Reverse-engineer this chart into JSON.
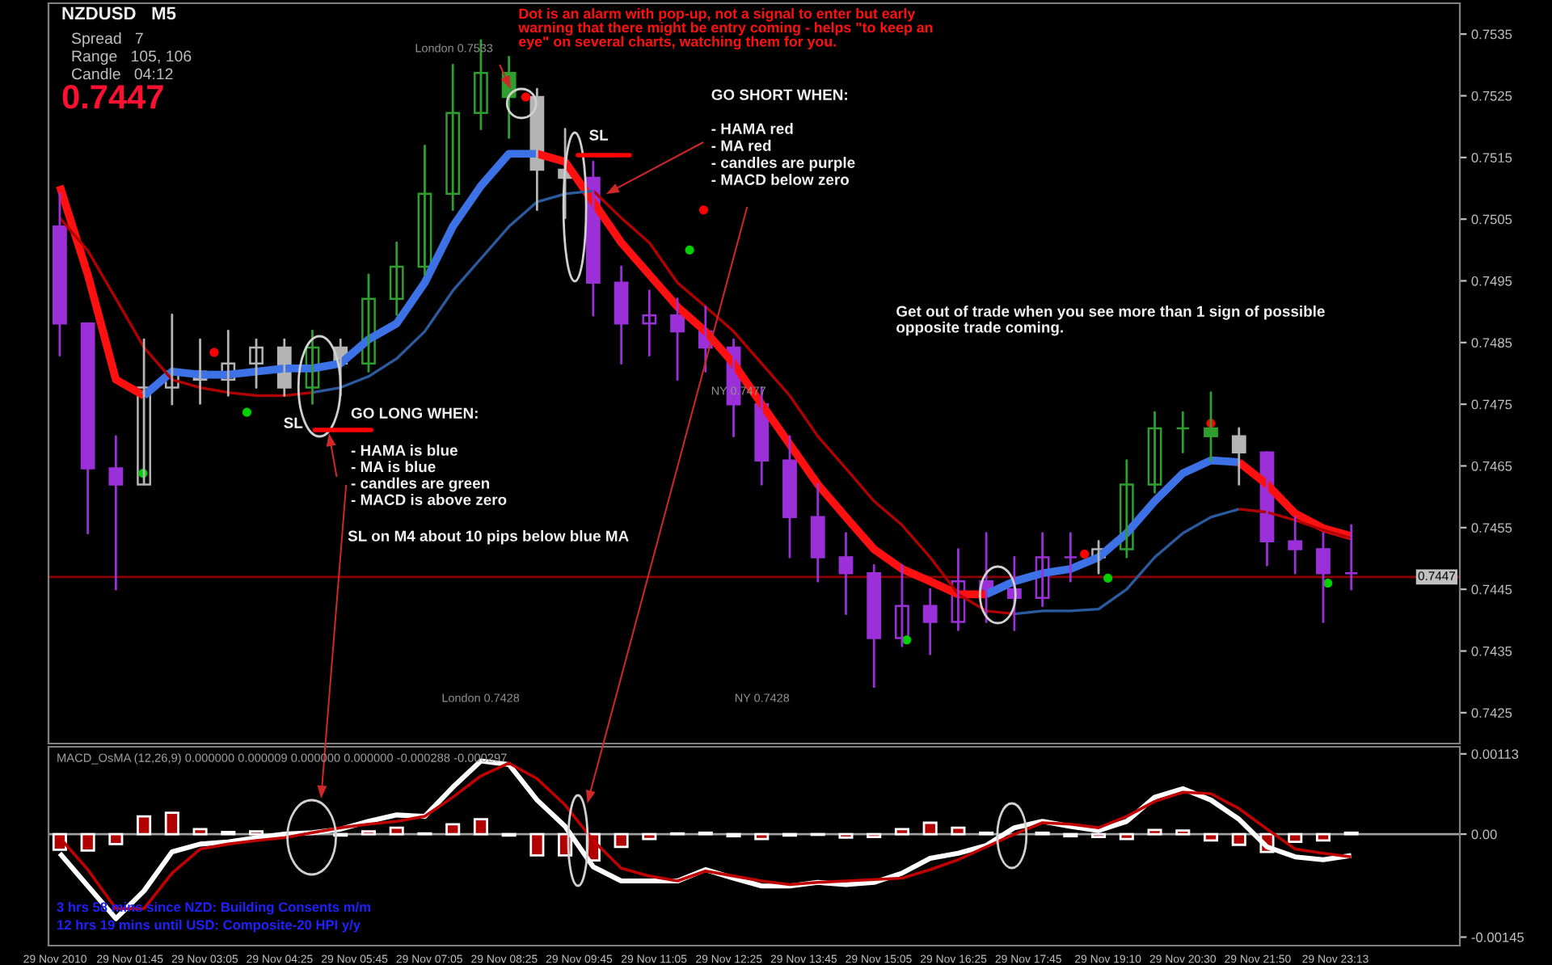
{
  "chart_data": [
    {
      "type": "candlestick",
      "title": "NZDUSD   M5",
      "x": [
        "2010-11-29T00:30",
        "2010-11-29T01:00",
        "2010-11-29T01:30",
        "2010-11-29T02:00",
        "2010-11-29T02:30",
        "2010-11-29T03:00",
        "2010-11-29T03:30",
        "2010-11-29T04:00",
        "2010-11-29T04:30",
        "2010-11-29T05:00",
        "2010-11-29T05:30",
        "2010-11-29T06:00",
        "2010-11-29T06:30",
        "2010-11-29T07:00",
        "2010-11-29T07:30",
        "2010-11-29T08:00",
        "2010-11-29T08:30",
        "2010-11-29T09:00",
        "2010-11-29T09:30",
        "2010-11-29T10:00",
        "2010-11-29T10:30",
        "2010-11-29T11:00",
        "2010-11-29T11:30",
        "2010-11-29T12:00",
        "2010-11-29T12:30",
        "2010-11-29T13:00",
        "2010-11-29T13:30",
        "2010-11-29T14:00",
        "2010-11-29T14:30",
        "2010-11-29T15:00",
        "2010-11-29T15:30",
        "2010-11-29T16:00",
        "2010-11-29T16:30",
        "2010-11-29T17:00",
        "2010-11-29T17:30",
        "2010-11-29T18:00",
        "2010-11-29T18:30",
        "2010-11-29T19:00",
        "2010-11-29T19:30",
        "2010-11-29T20:00",
        "2010-11-29T20:30",
        "2010-11-29T21:00",
        "2010-11-29T21:30",
        "2010-11-29T22:00",
        "2010-11-29T22:30",
        "2010-11-29T23:00",
        "2010-11-29T23:30"
      ],
      "ohlc": [
        [
          0.75038,
          0.75091,
          0.74829,
          0.74881
        ],
        [
          0.74881,
          0.74881,
          0.74541,
          0.74646
        ],
        [
          0.74646,
          0.74698,
          0.7445,
          0.7462
        ],
        [
          0.7462,
          0.74855,
          0.7462,
          0.74777
        ],
        [
          0.74777,
          0.74895,
          0.7475,
          0.74803
        ],
        [
          0.74803,
          0.74855,
          0.74751,
          0.7479
        ],
        [
          0.7479,
          0.74869,
          0.74764,
          0.74816
        ],
        [
          0.74816,
          0.74855,
          0.74777,
          0.74842
        ],
        [
          0.74842,
          0.74855,
          0.74764,
          0.74777
        ],
        [
          0.74777,
          0.74869,
          0.74751,
          0.74842
        ],
        [
          0.74842,
          0.74855,
          0.74764,
          0.74816
        ],
        [
          0.74816,
          0.7496,
          0.74803,
          0.74921
        ],
        [
          0.74921,
          0.75012,
          0.74895,
          0.74973
        ],
        [
          0.74973,
          0.75169,
          0.7496,
          0.75091
        ],
        [
          0.75091,
          0.753,
          0.75065,
          0.75222
        ],
        [
          0.75222,
          0.7534,
          0.75196,
          0.75287
        ],
        [
          0.75287,
          0.75313,
          0.75182,
          0.75248
        ],
        [
          0.75248,
          0.75261,
          0.75065,
          0.7513
        ],
        [
          0.7513,
          0.75196,
          0.75052,
          0.75117
        ],
        [
          0.75117,
          0.75143,
          0.74894,
          0.74947
        ],
        [
          0.74947,
          0.74973,
          0.74816,
          0.74881
        ],
        [
          0.74881,
          0.74934,
          0.74829,
          0.74894
        ],
        [
          0.74894,
          0.74921,
          0.7479,
          0.74868
        ],
        [
          0.74868,
          0.74908,
          0.74803,
          0.74842
        ],
        [
          0.74842,
          0.74855,
          0.74698,
          0.7475
        ],
        [
          0.7475,
          0.74777,
          0.7462,
          0.74659
        ],
        [
          0.74659,
          0.74698,
          0.74502,
          0.74567
        ],
        [
          0.74567,
          0.7462,
          0.74463,
          0.74502
        ],
        [
          0.74502,
          0.74541,
          0.7441,
          0.74476
        ],
        [
          0.74476,
          0.74489,
          0.74292,
          0.74371
        ],
        [
          0.74371,
          0.74489,
          0.74358,
          0.74423
        ],
        [
          0.74423,
          0.7445,
          0.74345,
          0.74397
        ],
        [
          0.74397,
          0.74515,
          0.74384,
          0.74463
        ],
        [
          0.74463,
          0.74541,
          0.74397,
          0.7445
        ],
        [
          0.7445,
          0.74502,
          0.74384,
          0.74436
        ],
        [
          0.74436,
          0.74541,
          0.74423,
          0.74502
        ],
        [
          0.74502,
          0.74541,
          0.74463,
          0.74502
        ],
        [
          0.74502,
          0.74528,
          0.74476,
          0.74515
        ],
        [
          0.74515,
          0.74659,
          0.74502,
          0.7462
        ],
        [
          0.7462,
          0.74737,
          0.74607,
          0.74711
        ],
        [
          0.74711,
          0.74737,
          0.74672,
          0.74711
        ],
        [
          0.74711,
          0.74769,
          0.74659,
          0.74698
        ],
        [
          0.74698,
          0.74711,
          0.7462,
          0.74672
        ],
        [
          0.74672,
          0.74672,
          0.74489,
          0.74528
        ],
        [
          0.74528,
          0.74567,
          0.74476,
          0.74515
        ],
        [
          0.74515,
          0.74541,
          0.74397,
          0.74476
        ],
        [
          0.74476,
          0.74554,
          0.7445,
          0.74476
        ]
      ],
      "colors": [
        "#9b30d9",
        "#9b30d9",
        "#9b30d9",
        "#b4b4b4",
        "#b4b4b4",
        "#b4b4b4",
        "#b4b4b4",
        "#b4b4b4",
        "#b4b4b4",
        "#2e9e2e",
        "#b4b4b4",
        "#2e9e2e",
        "#2e9e2e",
        "#2e9e2e",
        "#2e9e2e",
        "#2e9e2e",
        "#2e9e2e",
        "#b4b4b4",
        "#b4b4b4",
        "#9b30d9",
        "#9b30d9",
        "#9b30d9",
        "#9b30d9",
        "#9b30d9",
        "#9b30d9",
        "#9b30d9",
        "#9b30d9",
        "#9b30d9",
        "#9b30d9",
        "#9b30d9",
        "#9b30d9",
        "#9b30d9",
        "#9b30d9",
        "#9b30d9",
        "#9b30d9",
        "#9b30d9",
        "#9b30d9",
        "#b4b4b4",
        "#2e9e2e",
        "#2e9e2e",
        "#2e9e2e",
        "#2e9e2e",
        "#b4b4b4",
        "#9b30d9",
        "#9b30d9",
        "#9b30d9",
        "#9b30d9"
      ],
      "series": [
        {
          "type": "line",
          "color": "#ff1010",
          "x": [
            "2010-11-29T00:30",
            "2010-11-29T01:00",
            "2010-11-29T01:30",
            "2010-11-29T02:00"
          ],
          "values": [
            0.75104,
            0.7496,
            0.7479,
            0.74764
          ]
        },
        {
          "type": "line",
          "color": "#3d72e6",
          "x": [
            "2010-11-29T02:00",
            "2010-11-29T02:30",
            "2010-11-29T03:00",
            "2010-11-29T03:30",
            "2010-11-29T04:00",
            "2010-11-29T04:30",
            "2010-11-29T05:00",
            "2010-11-29T05:30",
            "2010-11-29T06:00",
            "2010-11-29T06:30",
            "2010-11-29T07:00",
            "2010-11-29T07:30",
            "2010-11-29T08:00",
            "2010-11-29T08:30",
            "2010-11-29T09:00"
          ],
          "values": [
            0.74764,
            0.74803,
            0.74798,
            0.74798,
            0.74803,
            0.74808,
            0.74808,
            0.74816,
            0.74855,
            0.74881,
            0.74947,
            0.75038,
            0.75104,
            0.75156,
            0.75156
          ]
        },
        {
          "type": "line",
          "color": "#ff1010",
          "x": [
            "2010-11-29T09:00",
            "2010-11-29T09:30",
            "2010-11-29T10:00",
            "2010-11-29T10:30",
            "2010-11-29T11:00",
            "2010-11-29T11:30",
            "2010-11-29T12:00",
            "2010-11-29T12:30",
            "2010-11-29T13:00",
            "2010-11-29T13:30",
            "2010-11-29T14:00",
            "2010-11-29T14:30",
            "2010-11-29T15:00",
            "2010-11-29T15:30",
            "2010-11-29T16:00",
            "2010-11-29T16:30",
            "2010-11-29T17:00"
          ],
          "values": [
            0.75156,
            0.75143,
            0.75078,
            0.75012,
            0.7496,
            0.74908,
            0.74868,
            0.74816,
            0.7475,
            0.74685,
            0.7462,
            0.74567,
            0.74515,
            0.74483,
            0.74463,
            0.74442,
            0.74442
          ]
        },
        {
          "type": "line",
          "color": "#3d72e6",
          "x": [
            "2010-11-29T17:00",
            "2010-11-29T17:30",
            "2010-11-29T18:00",
            "2010-11-29T18:30",
            "2010-11-29T19:00",
            "2010-11-29T19:30",
            "2010-11-29T20:00",
            "2010-11-29T20:30",
            "2010-11-29T21:00",
            "2010-11-29T21:30"
          ],
          "values": [
            0.74442,
            0.74463,
            0.74476,
            0.74483,
            0.74502,
            0.74541,
            0.74593,
            0.74638,
            0.74659,
            0.74656
          ]
        },
        {
          "type": "line",
          "color": "#ff1010",
          "x": [
            "2010-11-29T21:30",
            "2010-11-29T22:00",
            "2010-11-29T22:30",
            "2010-11-29T23:00",
            "2010-11-29T23:30"
          ],
          "values": [
            0.74656,
            0.7462,
            0.74573,
            0.74549,
            0.74536
          ]
        },
        {
          "type": "line",
          "color": "#b00000",
          "x": [
            "2010-11-29T00:30",
            "2010-11-29T01:00",
            "2010-11-29T01:30",
            "2010-11-29T02:00",
            "2010-11-29T02:30",
            "2010-11-29T03:00",
            "2010-11-29T03:30",
            "2010-11-29T04:00",
            "2010-11-29T04:30",
            "2010-11-29T05:00"
          ],
          "values": [
            0.75052,
            0.74999,
            0.74921,
            0.74842,
            0.7479,
            0.74777,
            0.74769,
            0.74764,
            0.74764,
            0.74769
          ]
        },
        {
          "type": "line",
          "color": "#2b5a9e",
          "x": [
            "2010-11-29T05:00",
            "2010-11-29T05:30",
            "2010-11-29T06:00",
            "2010-11-29T06:30",
            "2010-11-29T07:00",
            "2010-11-29T07:30",
            "2010-11-29T08:00",
            "2010-11-29T08:30",
            "2010-11-29T09:00",
            "2010-11-29T09:30",
            "2010-11-29T10:00"
          ],
          "values": [
            0.74769,
            0.74777,
            0.74795,
            0.74824,
            0.74868,
            0.74934,
            0.74986,
            0.75038,
            0.75078,
            0.75091,
            0.75096
          ]
        },
        {
          "type": "line",
          "color": "#b00000",
          "x": [
            "2010-11-29T10:00",
            "2010-11-29T10:30",
            "2010-11-29T11:00",
            "2010-11-29T11:30",
            "2010-11-29T12:00",
            "2010-11-29T12:30",
            "2010-11-29T13:00",
            "2010-11-29T13:30",
            "2010-11-29T14:00",
            "2010-11-29T14:30",
            "2010-11-29T15:00",
            "2010-11-29T15:30",
            "2010-11-29T16:00",
            "2010-11-29T16:30",
            "2010-11-29T17:00",
            "2010-11-29T17:30"
          ],
          "values": [
            0.75096,
            0.75052,
            0.75012,
            0.74947,
            0.74908,
            0.74868,
            0.74816,
            0.74764,
            0.74698,
            0.74646,
            0.74593,
            0.74554,
            0.74502,
            0.74442,
            0.74415,
            0.7441
          ]
        },
        {
          "type": "line",
          "color": "#2b5a9e",
          "x": [
            "2010-11-29T17:30",
            "2010-11-29T18:00",
            "2010-11-29T18:30",
            "2010-11-29T19:00",
            "2010-11-29T19:30",
            "2010-11-29T20:00",
            "2010-11-29T20:30",
            "2010-11-29T21:00",
            "2010-11-29T21:30"
          ],
          "values": [
            0.7441,
            0.74415,
            0.74415,
            0.74418,
            0.7445,
            0.74502,
            0.74541,
            0.74567,
            0.7458
          ]
        },
        {
          "type": "line",
          "color": "#b00000",
          "x": [
            "2010-11-29T21:30",
            "2010-11-29T22:00",
            "2010-11-29T22:30",
            "2010-11-29T23:00",
            "2010-11-29T23:30"
          ],
          "values": [
            0.7458,
            0.74575,
            0.74562,
            0.74546,
            0.74533
          ]
        },
        {
          "type": "scatter",
          "color": "#ff0000",
          "x": [
            "2010-11-29T03:15",
            "2010-11-29T08:48",
            "2010-11-29T11:58",
            "2010-11-29T18:45",
            "2010-11-29T21:00"
          ],
          "values": [
            0.74834,
            0.75248,
            0.75065,
            0.74507,
            0.74719
          ]
        },
        {
          "type": "scatter",
          "color": "#00d000",
          "x": [
            "2010-11-29T01:59",
            "2010-11-29T03:50",
            "2010-11-29T11:43",
            "2010-11-29T15:35",
            "2010-11-29T19:10",
            "2010-11-29T23:05"
          ],
          "values": [
            0.74638,
            0.74737,
            0.75,
            0.74368,
            0.74468,
            0.7446
          ]
        }
      ],
      "ref_lines": [
        {
          "axis": "y",
          "value": 0.7447,
          "label": "0.7447",
          "color": "#8b0000"
        }
      ],
      "xlim": [
        "2010-11-29T00:18",
        "2010-11-30T01:26"
      ],
      "ylim": [
        0.742,
        0.754
      ],
      "yticks": [
        0.7425,
        0.7435,
        0.7445,
        0.7455,
        0.7465,
        0.7475,
        0.7485,
        0.7495,
        0.7505,
        0.7515,
        0.7525,
        0.7535
      ],
      "tick_labels": "y",
      "annotations": [
        "Spread   7",
        "Range   105, 106",
        "Candle   04:12",
        "0.7447",
        "Dot is an alarm with pop-up, not a signal to enter but early\nwarning that there might be entry coming - helps \"to keep an\neye\" on several charts, watching them for you.",
        "GO SHORT WHEN:",
        "- HAMA red\n- MA red\n- candles are purple\n- MACD below zero",
        "Get out of trade when you see more than 1 sign of possible\nopposite trade coming.",
        "GO LONG WHEN:",
        "- HAMA is blue\n- MA is blue\n- candles are green\n- MACD is above zero",
        "SL on M4 about 10 pips below blue MA",
        "SL",
        "SL",
        "London 0.7533",
        "NY 0.7477",
        "London 0.7428",
        "NY 0.7428"
      ]
    },
    {
      "type": "line",
      "x": [
        "2010-11-29T00:30",
        "2010-11-29T01:00",
        "2010-11-29T01:30",
        "2010-11-29T02:00",
        "2010-11-29T02:30",
        "2010-11-29T03:00",
        "2010-11-29T03:30",
        "2010-11-29T04:00",
        "2010-11-29T04:30",
        "2010-11-29T05:00",
        "2010-11-29T05:30",
        "2010-11-29T06:00",
        "2010-11-29T06:30",
        "2010-11-29T07:00",
        "2010-11-29T07:30",
        "2010-11-29T08:00",
        "2010-11-29T08:30",
        "2010-11-29T09:00",
        "2010-11-29T09:30",
        "2010-11-29T10:00",
        "2010-11-29T10:30",
        "2010-11-29T11:00",
        "2010-11-29T11:30",
        "2010-11-29T12:00",
        "2010-11-29T12:30",
        "2010-11-29T13:00",
        "2010-11-29T13:30",
        "2010-11-29T14:00",
        "2010-11-29T14:30",
        "2010-11-29T15:00",
        "2010-11-29T15:30",
        "2010-11-29T16:00",
        "2010-11-29T16:30",
        "2010-11-29T17:00",
        "2010-11-29T17:30",
        "2010-11-29T18:00",
        "2010-11-29T18:30",
        "2010-11-29T19:00",
        "2010-11-29T19:30",
        "2010-11-29T20:00",
        "2010-11-29T20:30",
        "2010-11-29T21:00",
        "2010-11-29T21:30",
        "2010-11-29T22:00",
        "2010-11-29T22:30",
        "2010-11-29T23:00",
        "2010-11-29T23:30"
      ],
      "series": [
        {
          "type": "bar",
          "color": "#b00000",
          "values": [
            -0.00022,
            -0.00023,
            -0.00014,
            0.00025,
            0.0003,
            7e-05,
            3e-05,
            4e-05,
            null,
            null,
            -2e-05,
            4e-05,
            9e-05,
            1e-05,
            0.00014,
            0.00021,
            -2e-05,
            -0.0003,
            -0.0003,
            -0.00037,
            -0.00018,
            -7e-05,
            1e-05,
            2e-05,
            -3e-05,
            -7e-05,
            -2e-05,
            -1e-05,
            -5e-05,
            -4e-05,
            7e-05,
            0.00016,
            9e-05,
            2e-05,
            null,
            2e-05,
            -3e-05,
            -4e-05,
            -7e-05,
            6e-05,
            5e-05,
            -9e-05,
            -0.00015,
            -0.00025,
            -0.00011,
            -9e-05,
            2e-05
          ]
        },
        {
          "type": "line",
          "color": "#ffffff",
          "values": [
            -0.00027,
            -0.00073,
            -0.00119,
            -0.0008,
            -0.00025,
            -0.00014,
            -0.00011,
            -5e-05,
            0.0,
            2e-05,
            7e-05,
            0.00018,
            0.00027,
            0.00025,
            0.00066,
            0.00103,
            0.00098,
            0.00048,
            0.00011,
            -0.00046,
            -0.00066,
            -0.00066,
            -0.00066,
            -0.0005,
            -0.00062,
            -0.00073,
            -0.00073,
            -0.00068,
            -0.00071,
            -0.00068,
            -0.00055,
            -0.00034,
            -0.00027,
            -0.00016,
            9e-05,
            0.00018,
            0.00011,
            5e-05,
            0.00018,
            0.00052,
            0.00064,
            0.00048,
            0.00021,
            -0.00018,
            -0.00032,
            -0.00036,
            -0.0003
          ]
        },
        {
          "type": "line",
          "color": "#c00000",
          "values": [
            -5e-05,
            -0.0005,
            -0.00105,
            -0.00105,
            -0.00055,
            -0.00021,
            -0.00014,
            -9e-05,
            -5e-05,
            2e-05,
            9e-05,
            0.00014,
            0.00018,
            0.00025,
            0.00052,
            0.00082,
            0.001,
            0.00078,
            0.00041,
            -9e-05,
            -0.00048,
            -0.00059,
            -0.00066,
            -0.00052,
            -0.00059,
            -0.00066,
            -0.00071,
            -0.00068,
            -0.00066,
            -0.00064,
            -0.00062,
            -0.0005,
            -0.00036,
            -0.00018,
            0.0,
            0.00016,
            0.00014,
            9e-05,
            0.00025,
            0.00046,
            0.00059,
            0.00057,
            0.00036,
            7e-05,
            -0.00021,
            -0.00027,
            -0.00032
          ]
        }
      ],
      "ref_lines": [
        {
          "axis": "y",
          "value": 0,
          "color": "#a0a0a0"
        }
      ],
      "xlim": [
        "2010-11-29T00:18",
        "2010-11-30T01:26"
      ],
      "xticks": [
        {
          "value": "2010-11-29T00:25",
          "label": "29 Nov 2010"
        },
        {
          "value": "2010-11-29T01:45",
          "label": "29 Nov 01:45"
        },
        {
          "value": "2010-11-29T03:05",
          "label": "29 Nov 03:05"
        },
        {
          "value": "2010-11-29T04:25",
          "label": "29 Nov 04:25"
        },
        {
          "value": "2010-11-29T05:45",
          "label": "29 Nov 05:45"
        },
        {
          "value": "2010-11-29T07:05",
          "label": "29 Nov 07:05"
        },
        {
          "value": "2010-11-29T08:25",
          "label": "29 Nov 08:25"
        },
        {
          "value": "2010-11-29T09:45",
          "label": "29 Nov 09:45"
        },
        {
          "value": "2010-11-29T11:05",
          "label": "29 Nov 11:05"
        },
        {
          "value": "2010-11-29T12:25",
          "label": "29 Nov 12:25"
        },
        {
          "value": "2010-11-29T13:45",
          "label": "29 Nov 13:45"
        },
        {
          "value": "2010-11-29T15:05",
          "label": "29 Nov 15:05"
        },
        {
          "value": "2010-11-29T16:25",
          "label": "29 Nov 16:25"
        },
        {
          "value": "2010-11-29T17:45",
          "label": "29 Nov 17:45"
        },
        {
          "value": "2010-11-29T19:10",
          "label": "29 Nov 19:10"
        },
        {
          "value": "2010-11-29T20:30",
          "label": "29 Nov 20:30"
        },
        {
          "value": "2010-11-29T21:50",
          "label": "29 Nov 21:50"
        },
        {
          "value": "2010-11-29T23:13",
          "label": "29 Nov 23:13"
        }
      ],
      "ylim": [
        -0.00157,
        0.00123
      ],
      "yticks": [
        0.00113,
        {
          "value": 0,
          "label": "0.00"
        },
        -0.00145
      ],
      "annotations": [
        "MACD_OsMA (12,26,9) 0.000000 0.000009 0.000000 0.000000 -0.000288 -0.000297",
        "3 hrs 58 mins since NZD: Building Consents m/m",
        "12 hrs 19 mins until USD: Composite-20 HPI y/y"
      ]
    }
  ]
}
